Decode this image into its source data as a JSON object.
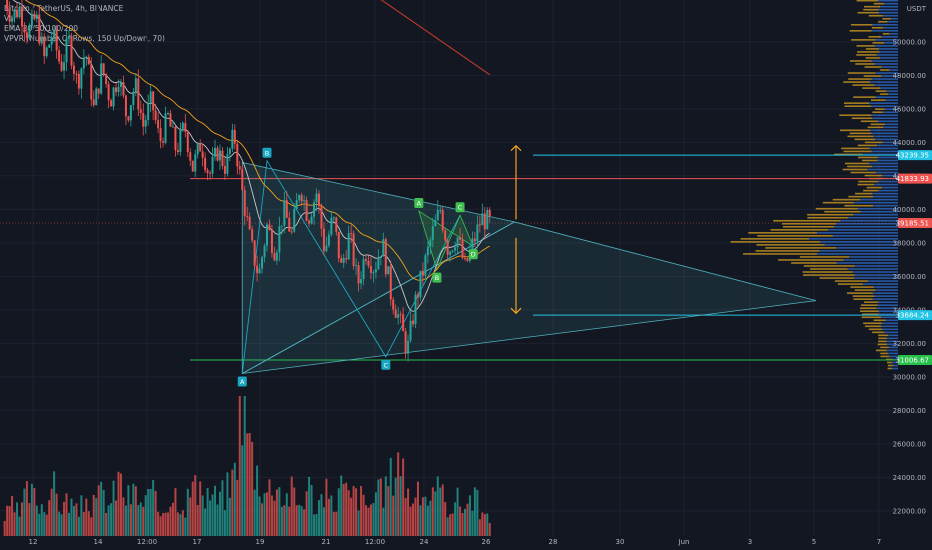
{
  "legend": {
    "symbol": "Bitcoin / TetherUS, 4h, BINANCE",
    "vol": "Vol",
    "ema": "EMA 20/50/100/200",
    "vpvr": "VPVR (Number Of Rows, 150 Up/Down, 70)"
  },
  "currency": "USDT",
  "colors": {
    "background": "#131722",
    "up": "#26a69a",
    "down": "#ef5350",
    "grid": "#1e2230",
    "triangle": "#4fb3bf",
    "hline_cyan": "#22c5e5",
    "hline_red": "#ef5350",
    "hline_green": "#26c04a",
    "arrow": "#f2a31a",
    "ema_fast": "#c8c8c8",
    "ema_mid": "#f2a31a",
    "ema_slow": "#c0392b",
    "vp_up": "#2f6fd1",
    "vp_down": "#d8a220",
    "pattern_outer": "#1aa7c2",
    "pattern_inner": "#3fbf4f"
  },
  "chart_data": {
    "type": "candlestick",
    "x_ticks": [
      "12",
      "14",
      "12:00",
      "17",
      "19",
      "21",
      "12:00",
      "24",
      "26",
      "28",
      "30",
      "Jun",
      "3",
      "5",
      "7"
    ],
    "y_ticks": [
      22000,
      24000,
      26000,
      28000,
      30000,
      32000,
      34000,
      36000,
      38000,
      40000,
      42000,
      44000,
      46000,
      48000,
      50000
    ],
    "y_range": [
      20500,
      52500
    ],
    "price_labels": [
      {
        "label": "43239.35",
        "value": 43239.35,
        "color": "#22c5e5"
      },
      {
        "label": "41833.93",
        "value": 41833.93,
        "color": "#ef5350"
      },
      {
        "label": "39185.51",
        "value": 39185.51,
        "color": "#ef5350"
      },
      {
        "label": "33684.24",
        "value": 33684.24,
        "color": "#22c5e5"
      },
      {
        "label": "31006.67",
        "value": 31006.67,
        "color": "#26c04a"
      }
    ],
    "horizontal_lines": [
      {
        "value": 43239.35,
        "color": "#22c5e5"
      },
      {
        "value": 41833.93,
        "color": "#ef5350"
      },
      {
        "value": 33684.24,
        "color": "#22c5e5"
      },
      {
        "value": 31006.67,
        "color": "#26c04a"
      }
    ],
    "price_path": [
      [
        0,
        53000
      ],
      [
        5,
        51500
      ],
      [
        10,
        52000
      ],
      [
        15,
        50500
      ],
      [
        20,
        51500
      ],
      [
        25,
        49000
      ],
      [
        30,
        50500
      ],
      [
        35,
        48500
      ],
      [
        40,
        50000
      ],
      [
        45,
        47500
      ],
      [
        50,
        49500
      ],
      [
        55,
        46000
      ],
      [
        60,
        48500
      ],
      [
        65,
        46500
      ],
      [
        70,
        48000
      ],
      [
        75,
        45500
      ],
      [
        80,
        47500
      ],
      [
        85,
        45000
      ],
      [
        90,
        46500
      ],
      [
        95,
        44000
      ],
      [
        100,
        45500
      ],
      [
        105,
        43500
      ],
      [
        110,
        45000
      ],
      [
        115,
        42500
      ],
      [
        120,
        44000
      ],
      [
        125,
        42000
      ],
      [
        130,
        43500
      ],
      [
        135,
        42500
      ],
      [
        140,
        44500
      ],
      [
        145,
        41000
      ],
      [
        150,
        38000
      ],
      [
        155,
        36000
      ],
      [
        160,
        39000
      ],
      [
        165,
        37500
      ],
      [
        170,
        40000
      ],
      [
        175,
        38500
      ],
      [
        180,
        41500
      ],
      [
        185,
        39500
      ],
      [
        190,
        41000
      ],
      [
        195,
        37500
      ],
      [
        200,
        39500
      ],
      [
        205,
        36500
      ],
      [
        210,
        38500
      ],
      [
        215,
        35500
      ],
      [
        220,
        37500
      ],
      [
        225,
        36500
      ],
      [
        230,
        38000
      ],
      [
        235,
        35000
      ],
      [
        240,
        33500
      ],
      [
        245,
        31500
      ],
      [
        250,
        34500
      ],
      [
        255,
        36500
      ],
      [
        260,
        38500
      ],
      [
        265,
        40000
      ],
      [
        270,
        37500
      ],
      [
        275,
        38500
      ],
      [
        280,
        36500
      ],
      [
        285,
        38000
      ],
      [
        290,
        39500
      ],
      [
        295,
        39200
      ]
    ],
    "volume_path": [
      [
        0,
        1
      ],
      [
        5,
        2
      ],
      [
        10,
        1.5
      ],
      [
        15,
        3
      ],
      [
        20,
        2.5
      ],
      [
        25,
        2
      ],
      [
        30,
        3.5
      ],
      [
        35,
        2
      ],
      [
        40,
        2.5
      ],
      [
        45,
        1.5
      ],
      [
        50,
        2.5
      ],
      [
        55,
        2
      ],
      [
        60,
        3
      ],
      [
        65,
        2
      ],
      [
        70,
        4
      ],
      [
        75,
        2.5
      ],
      [
        80,
        3
      ],
      [
        85,
        2
      ],
      [
        90,
        3
      ],
      [
        95,
        1.5
      ],
      [
        100,
        2.5
      ],
      [
        105,
        3
      ],
      [
        110,
        2
      ],
      [
        115,
        3.5
      ],
      [
        120,
        2.5
      ],
      [
        125,
        3
      ],
      [
        130,
        2.5
      ],
      [
        135,
        3
      ],
      [
        140,
        4
      ],
      [
        145,
        10
      ],
      [
        150,
        6
      ],
      [
        155,
        4
      ],
      [
        160,
        3
      ],
      [
        165,
        4
      ],
      [
        170,
        2.5
      ],
      [
        175,
        3
      ],
      [
        180,
        2
      ],
      [
        185,
        3.5
      ],
      [
        190,
        2
      ],
      [
        195,
        3
      ],
      [
        200,
        2
      ],
      [
        205,
        3.5
      ],
      [
        210,
        2.5
      ],
      [
        215,
        3
      ],
      [
        220,
        2
      ],
      [
        225,
        2.5
      ],
      [
        230,
        3
      ],
      [
        235,
        4
      ],
      [
        240,
        6
      ],
      [
        245,
        3
      ],
      [
        250,
        2.5
      ],
      [
        255,
        3
      ],
      [
        260,
        2.5
      ],
      [
        265,
        3
      ],
      [
        270,
        2
      ],
      [
        275,
        2.5
      ],
      [
        280,
        2
      ],
      [
        285,
        3
      ],
      [
        290,
        1.5
      ],
      [
        295,
        1
      ]
    ],
    "pattern_points": [
      {
        "label": "A",
        "slot": 145,
        "value": 30200,
        "color": "#1aa7c2",
        "pos": "below"
      },
      {
        "label": "B",
        "slot": 160,
        "value": 42900,
        "color": "#1aa7c2",
        "pos": "above"
      },
      {
        "label": "C",
        "slot": 232,
        "value": 31200,
        "color": "#1aa7c2",
        "pos": "below"
      },
      {
        "label": "A",
        "slot": 252,
        "value": 39900,
        "color": "#3fbf4f",
        "pos": "above"
      },
      {
        "label": "B",
        "slot": 263,
        "value": 36400,
        "color": "#3fbf4f",
        "pos": "below"
      },
      {
        "label": "C",
        "slot": 277,
        "value": 39650,
        "color": "#3fbf4f",
        "pos": "above"
      },
      {
        "label": "D",
        "slot": 285,
        "value": 37800,
        "color": "#3fbf4f",
        "pos": "below"
      }
    ]
  }
}
